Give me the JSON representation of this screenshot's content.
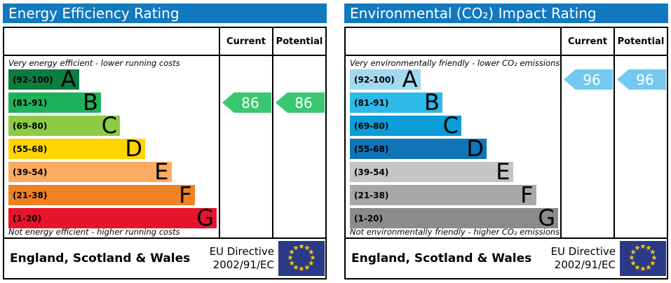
{
  "chart_data": [
    {
      "type": "bar",
      "title": "Energy Efficiency Rating",
      "header_color": "#1279bf",
      "columns": {
        "current": "Current",
        "potential": "Potential"
      },
      "top_caption": "Very energy efficient - lower running costs",
      "bottom_caption": "Not energy efficient - higher running costs",
      "bands": [
        {
          "letter": "A",
          "range": "(92-100)",
          "color": "#0b7d41",
          "width_pct": 33.5
        },
        {
          "letter": "B",
          "range": "(81-91)",
          "color": "#1eb25a",
          "width_pct": 44
        },
        {
          "letter": "C",
          "range": "(69-80)",
          "color": "#8dcb45",
          "width_pct": 53
        },
        {
          "letter": "D",
          "range": "(55-68)",
          "color": "#ffd500",
          "width_pct": 65
        },
        {
          "letter": "E",
          "range": "(39-54)",
          "color": "#fbab62",
          "width_pct": 77.5
        },
        {
          "letter": "F",
          "range": "(21-38)",
          "color": "#ee8122",
          "width_pct": 88.5
        },
        {
          "letter": "G",
          "range": "(1-20)",
          "color": "#e8132c",
          "width_pct": 99
        }
      ],
      "current": {
        "value": 86,
        "band": "B",
        "band_index": 1,
        "arrow_color": "#3bc772"
      },
      "potential": {
        "value": 86,
        "band": "B",
        "band_index": 1,
        "arrow_color": "#3bc772"
      },
      "footer": {
        "region": "England, Scotland & Wales",
        "directive_line1": "EU Directive",
        "directive_line2": "2002/91/EC",
        "flag_field_color": "#2b3a85",
        "flag_star_color": "#ffcc00"
      }
    },
    {
      "type": "bar",
      "title": "Environmental (CO₂) Impact Rating",
      "header_color": "#1279bf",
      "columns": {
        "current": "Current",
        "potential": "Potential"
      },
      "top_caption": "Very environmentally friendly - lower CO₂ emissions",
      "bottom_caption": "Not environmentally friendly - higher CO₂ emissions",
      "bands": [
        {
          "letter": "A",
          "range": "(92-100)",
          "color": "#a2d8f0",
          "width_pct": 33.5
        },
        {
          "letter": "B",
          "range": "(81-91)",
          "color": "#2db9e9",
          "width_pct": 44
        },
        {
          "letter": "C",
          "range": "(69-80)",
          "color": "#0a9dd8",
          "width_pct": 53
        },
        {
          "letter": "D",
          "range": "(55-68)",
          "color": "#0f75b8",
          "width_pct": 65
        },
        {
          "letter": "E",
          "range": "(39-54)",
          "color": "#c5c5c5",
          "width_pct": 77.5
        },
        {
          "letter": "F",
          "range": "(21-38)",
          "color": "#a7a7a7",
          "width_pct": 88.5
        },
        {
          "letter": "G",
          "range": "(1-20)",
          "color": "#8b8b8b",
          "width_pct": 99
        }
      ],
      "current": {
        "value": 96,
        "band": "A",
        "band_index": 0,
        "arrow_color": "#74c8f2"
      },
      "potential": {
        "value": 96,
        "band": "A",
        "band_index": 0,
        "arrow_color": "#74c8f2"
      },
      "footer": {
        "region": "England, Scotland & Wales",
        "directive_line1": "EU Directive",
        "directive_line2": "2002/91/EC",
        "flag_field_color": "#2b3a85",
        "flag_star_color": "#ffcc00"
      }
    }
  ]
}
